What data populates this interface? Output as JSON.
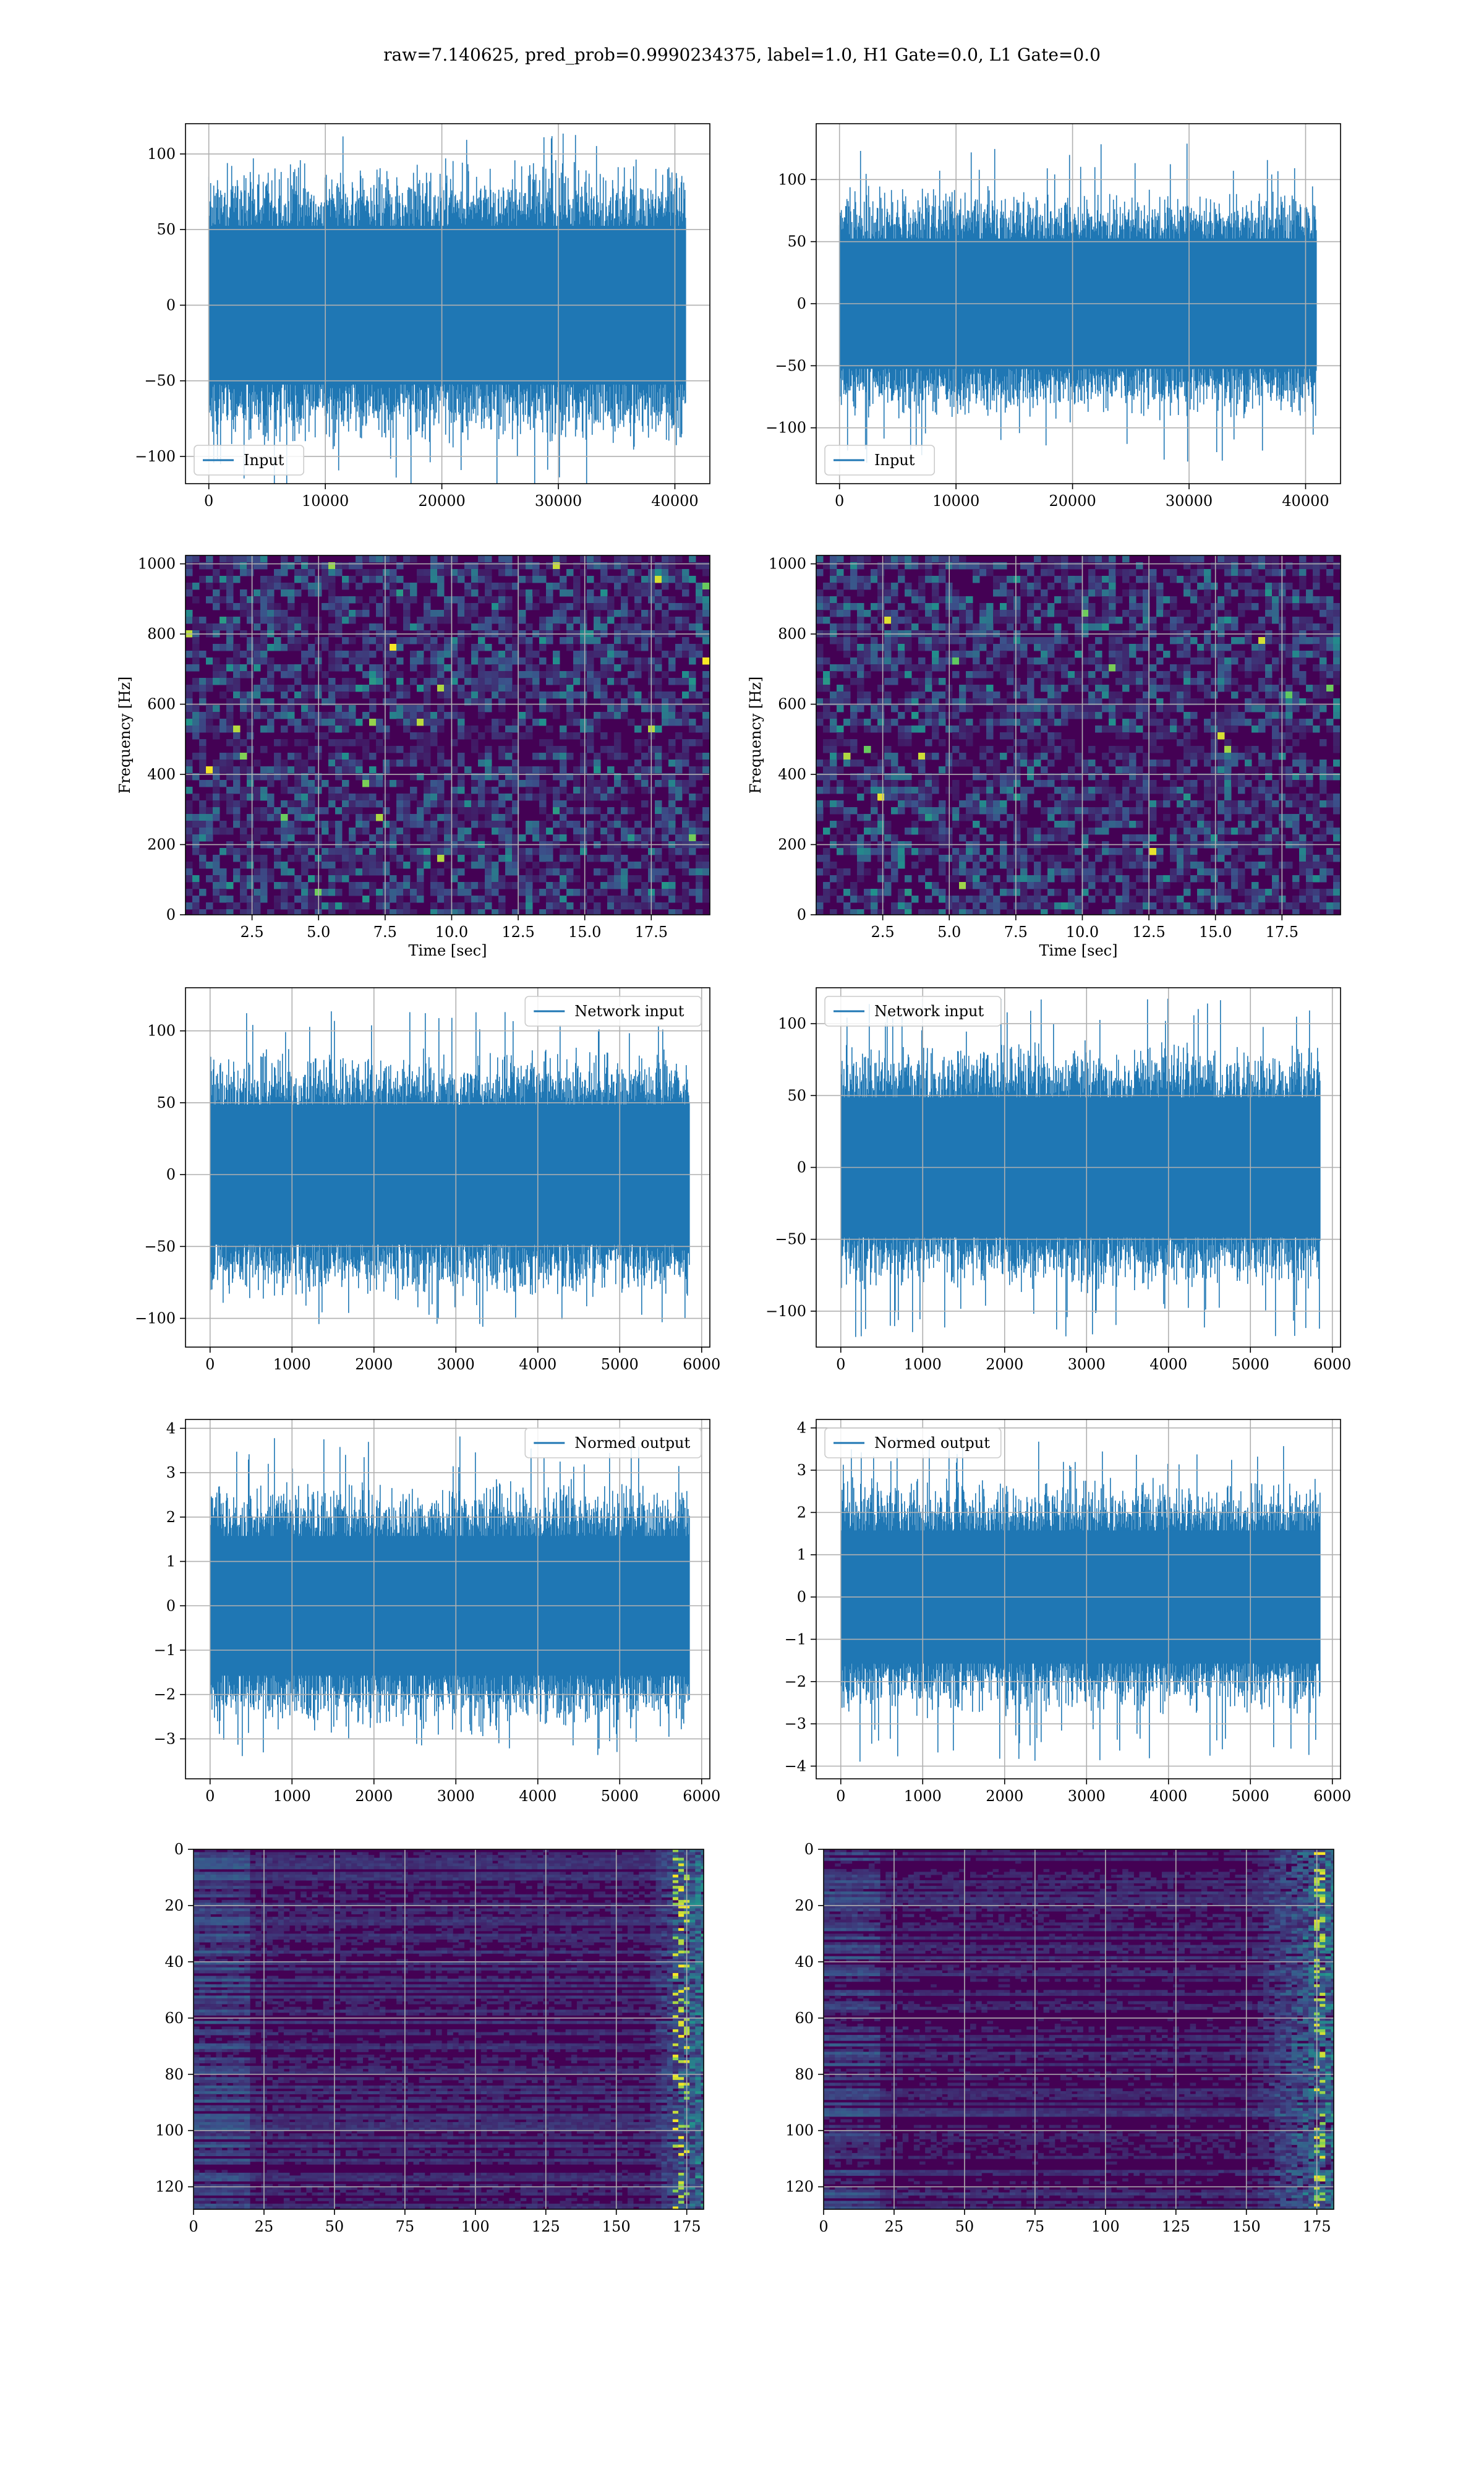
{
  "figure": {
    "suptitle": "raw=7.140625, pred_prob=0.9990234375, label=1.0, H1 Gate=0.0, L1 Gate=0.0"
  },
  "colors": {
    "series": "#1f77b4",
    "grid": "#b0b0b0",
    "viridis_dark": "#440154",
    "viridis_blue": "#3b528b",
    "viridis_teal": "#21918c",
    "viridis_green": "#5ec962",
    "viridis_yellow": "#fde725"
  },
  "chart_data": [
    {
      "id": "h1-input",
      "type": "line",
      "legend": "Input",
      "legend_loc": "lower-left",
      "xlim": [
        -2000,
        43000
      ],
      "ylim": [
        -118,
        120
      ],
      "xticks": [
        0,
        10000,
        20000,
        30000,
        40000
      ],
      "xtick_labels": [
        "0",
        "10000",
        "20000",
        "30000",
        "40000"
      ],
      "yticks": [
        -100,
        -50,
        0,
        50,
        100
      ],
      "ytick_labels": [
        "−100",
        "−50",
        "0",
        "50",
        "100"
      ],
      "grid": true,
      "xlabel": "",
      "ylabel": "",
      "data_x_range": [
        0,
        40960
      ],
      "envelope_max": 115,
      "envelope_min": -122,
      "typical_amplitude": 70
    },
    {
      "id": "l1-input",
      "type": "line",
      "legend": "Input",
      "legend_loc": "lower-left",
      "xlim": [
        -2000,
        43000
      ],
      "ylim": [
        -145,
        145
      ],
      "xticks": [
        0,
        10000,
        20000,
        30000,
        40000
      ],
      "xtick_labels": [
        "0",
        "10000",
        "20000",
        "30000",
        "40000"
      ],
      "yticks": [
        -100,
        -50,
        0,
        50,
        100
      ],
      "ytick_labels": [
        "−100",
        "−50",
        "0",
        "50",
        "100"
      ],
      "grid": true,
      "xlabel": "",
      "ylabel": "",
      "data_x_range": [
        0,
        40960
      ],
      "envelope_max": 130,
      "envelope_min": -130,
      "typical_amplitude": 70
    },
    {
      "id": "h1-spectrogram",
      "type": "heatmap",
      "colormap": "viridis",
      "xlim": [
        0,
        19.7
      ],
      "ylim": [
        0,
        1024
      ],
      "xticks": [
        2.5,
        5.0,
        7.5,
        10.0,
        12.5,
        15.0,
        17.5
      ],
      "xtick_labels": [
        "2.5",
        "5.0",
        "7.5",
        "10.0",
        "12.5",
        "15.0",
        "17.5"
      ],
      "yticks": [
        0,
        200,
        400,
        600,
        800,
        1000
      ],
      "ytick_labels": [
        "0",
        "200",
        "400",
        "600",
        "800",
        "1000"
      ],
      "grid": true,
      "xlabel": "Time [sec]",
      "ylabel": "Frequency [Hz]",
      "dark_band_hz": 500
    },
    {
      "id": "l1-spectrogram",
      "type": "heatmap",
      "colormap": "viridis",
      "xlim": [
        0,
        19.7
      ],
      "ylim": [
        0,
        1024
      ],
      "xticks": [
        2.5,
        5.0,
        7.5,
        10.0,
        12.5,
        15.0,
        17.5
      ],
      "xtick_labels": [
        "2.5",
        "5.0",
        "7.5",
        "10.0",
        "12.5",
        "15.0",
        "17.5"
      ],
      "yticks": [
        0,
        200,
        400,
        600,
        800,
        1000
      ],
      "ytick_labels": [
        "0",
        "200",
        "400",
        "600",
        "800",
        "1000"
      ],
      "grid": true,
      "xlabel": "Time [sec]",
      "ylabel": "Frequency [Hz]",
      "dark_band_hz": 500
    },
    {
      "id": "h1-network-input",
      "type": "line",
      "legend": "Network input",
      "legend_loc": "upper-right",
      "xlim": [
        -300,
        6100
      ],
      "ylim": [
        -120,
        130
      ],
      "xticks": [
        0,
        1000,
        2000,
        3000,
        4000,
        5000,
        6000
      ],
      "xtick_labels": [
        "0",
        "1000",
        "2000",
        "3000",
        "4000",
        "5000",
        "6000"
      ],
      "yticks": [
        -100,
        -50,
        0,
        50,
        100
      ],
      "ytick_labels": [
        "−100",
        "−50",
        "0",
        "50",
        "100"
      ],
      "grid": true,
      "xlabel": "",
      "ylabel": "",
      "data_x_range": [
        0,
        5850
      ],
      "envelope_max": 120,
      "envelope_min": -107,
      "typical_amplitude": 65
    },
    {
      "id": "l1-network-input",
      "type": "line",
      "legend": "Network input",
      "legend_loc": "upper-left",
      "xlim": [
        -300,
        6100
      ],
      "ylim": [
        -125,
        125
      ],
      "xticks": [
        0,
        1000,
        2000,
        3000,
        4000,
        5000,
        6000
      ],
      "xtick_labels": [
        "0",
        "1000",
        "2000",
        "3000",
        "4000",
        "5000",
        "6000"
      ],
      "yticks": [
        -100,
        -50,
        0,
        50,
        100
      ],
      "ytick_labels": [
        "−100",
        "−50",
        "0",
        "50",
        "100"
      ],
      "grid": true,
      "xlabel": "",
      "ylabel": "",
      "data_x_range": [
        0,
        5850
      ],
      "envelope_max": 118,
      "envelope_min": -118,
      "typical_amplitude": 65
    },
    {
      "id": "h1-normed-output",
      "type": "line",
      "legend": "Normed output",
      "legend_loc": "upper-right",
      "xlim": [
        -300,
        6100
      ],
      "ylim": [
        -3.9,
        4.2
      ],
      "xticks": [
        0,
        1000,
        2000,
        3000,
        4000,
        5000,
        6000
      ],
      "xtick_labels": [
        "0",
        "1000",
        "2000",
        "3000",
        "4000",
        "5000",
        "6000"
      ],
      "yticks": [
        -3,
        -2,
        -1,
        0,
        1,
        2,
        3,
        4
      ],
      "ytick_labels": [
        "−3",
        "−2",
        "−1",
        "0",
        "1",
        "2",
        "3",
        "4"
      ],
      "grid": true,
      "xlabel": "",
      "ylabel": "",
      "data_x_range": [
        0,
        5850
      ],
      "envelope_max": 3.85,
      "envelope_min": -3.4,
      "typical_amplitude": 2.1
    },
    {
      "id": "l1-normed-output",
      "type": "line",
      "legend": "Normed output",
      "legend_loc": "upper-left",
      "xlim": [
        -300,
        6100
      ],
      "ylim": [
        -4.3,
        4.2
      ],
      "xticks": [
        0,
        1000,
        2000,
        3000,
        4000,
        5000,
        6000
      ],
      "xtick_labels": [
        "0",
        "1000",
        "2000",
        "3000",
        "4000",
        "5000",
        "6000"
      ],
      "yticks": [
        -4,
        -3,
        -2,
        -1,
        0,
        1,
        2,
        3,
        4
      ],
      "ytick_labels": [
        "−4",
        "−3",
        "−2",
        "−1",
        "0",
        "1",
        "2",
        "3",
        "4"
      ],
      "grid": true,
      "xlabel": "",
      "ylabel": "",
      "data_x_range": [
        0,
        5850
      ],
      "envelope_max": 3.8,
      "envelope_min": -3.9,
      "typical_amplitude": 2.1
    },
    {
      "id": "h1-feature-map",
      "type": "heatmap",
      "colormap": "viridis",
      "xlim": [
        0,
        181
      ],
      "ylim": [
        128,
        0
      ],
      "xticks": [
        0,
        25,
        50,
        75,
        100,
        125,
        150,
        175
      ],
      "xtick_labels": [
        "0",
        "25",
        "50",
        "75",
        "100",
        "125",
        "150",
        "175"
      ],
      "yticks": [
        0,
        20,
        40,
        60,
        80,
        100,
        120
      ],
      "ytick_labels": [
        "0",
        "20",
        "40",
        "60",
        "80",
        "100",
        "120"
      ],
      "grid": true,
      "xlabel": "",
      "ylabel": "",
      "bright_column_start": 160,
      "bright_peak": 172
    },
    {
      "id": "l1-feature-map",
      "type": "heatmap",
      "colormap": "viridis",
      "xlim": [
        0,
        181
      ],
      "ylim": [
        128,
        0
      ],
      "xticks": [
        0,
        25,
        50,
        75,
        100,
        125,
        150,
        175
      ],
      "xtick_labels": [
        "0",
        "25",
        "50",
        "75",
        "100",
        "125",
        "150",
        "175"
      ],
      "yticks": [
        0,
        20,
        40,
        60,
        80,
        100,
        120
      ],
      "ytick_labels": [
        "0",
        "20",
        "40",
        "60",
        "80",
        "100",
        "120"
      ],
      "grid": true,
      "xlabel": "",
      "ylabel": "",
      "bright_column_start": 150,
      "bright_peak": 175
    }
  ]
}
